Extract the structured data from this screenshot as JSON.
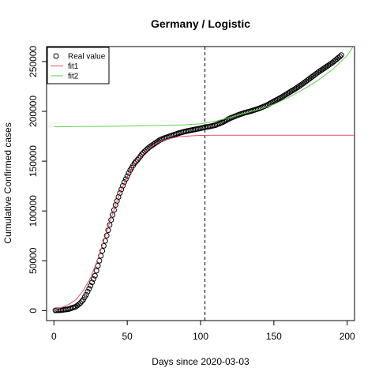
{
  "chart_data": {
    "type": "scatter",
    "title": "Germany / Logistic",
    "xlabel": "Days since 2020-03-03",
    "ylabel": "Cumulative Confirmed cases",
    "xlim": [
      -5,
      205
    ],
    "ylim": [
      -10000,
      265000
    ],
    "x_ticks": [
      0,
      50,
      100,
      150,
      200
    ],
    "x_tick_labels": [
      "0",
      "50",
      "100",
      "150",
      "200"
    ],
    "y_ticks": [
      0,
      50000,
      100000,
      150000,
      200000,
      250000
    ],
    "y_tick_labels": [
      "0",
      "50000",
      "100000",
      "150000",
      "200000",
      "250000"
    ],
    "vline_x": 103,
    "legend": {
      "position": "top-left",
      "entries": [
        {
          "label": "Real value",
          "style": "open-circle",
          "color": "#000000"
        },
        {
          "label": "fit1",
          "style": "line",
          "color": "#DF536B"
        },
        {
          "label": "fit2",
          "style": "line",
          "color": "#61D04F"
        }
      ]
    },
    "series": [
      {
        "name": "Real value",
        "style": "open-circle",
        "color": "#000000",
        "x": [
          1,
          5,
          10,
          15,
          18,
          20,
          22,
          25,
          28,
          30,
          32,
          35,
          38,
          40,
          42,
          45,
          48,
          50,
          52,
          55,
          58,
          60,
          62,
          65,
          68,
          70,
          72,
          75,
          78,
          80,
          85,
          90,
          95,
          100,
          103,
          105,
          110,
          115,
          120,
          125,
          130,
          135,
          140,
          145,
          150,
          155,
          160,
          165,
          170,
          175,
          180,
          185,
          190,
          195,
          196
        ],
        "y": [
          200,
          500,
          1500,
          4000,
          7500,
          11000,
          16000,
          25000,
          35000,
          45000,
          55000,
          70000,
          86000,
          96000,
          106000,
          118000,
          129000,
          135000,
          141000,
          148000,
          153000,
          157000,
          160000,
          164000,
          167000,
          169000,
          171000,
          173000,
          174500,
          175500,
          178000,
          180000,
          181500,
          183000,
          184000,
          184500,
          186000,
          189000,
          193000,
          196000,
          198500,
          200500,
          203000,
          206000,
          210000,
          214000,
          218500,
          223000,
          228000,
          233500,
          239000,
          244000,
          249000,
          255000,
          256500
        ]
      },
      {
        "name": "fit1",
        "style": "line",
        "color": "#DF536B",
        "x": [
          0,
          5,
          10,
          15,
          20,
          25,
          30,
          35,
          40,
          45,
          50,
          55,
          60,
          65,
          70,
          75,
          80,
          85,
          90,
          95,
          100,
          110,
          120,
          130,
          140,
          150,
          160,
          170,
          180,
          190,
          200,
          205
        ],
        "y": [
          1500,
          3000,
          6000,
          11000,
          20000,
          33000,
          52000,
          75000,
          97000,
          118000,
          134000,
          147000,
          156000,
          163000,
          168000,
          171000,
          173000,
          174500,
          175000,
          175500,
          175800,
          176000,
          176000,
          176000,
          176000,
          176000,
          176000,
          176000,
          176000,
          176000,
          176000,
          176000
        ]
      },
      {
        "name": "fit2",
        "style": "line",
        "color": "#61D04F",
        "x": [
          0,
          20,
          40,
          60,
          80,
          90,
          100,
          110,
          120,
          130,
          140,
          150,
          160,
          170,
          180,
          190,
          200,
          205
        ],
        "y": [
          184500,
          184800,
          185000,
          185500,
          186000,
          186500,
          187500,
          190000,
          194000,
          198000,
          202000,
          207000,
          214000,
          222000,
          231000,
          242000,
          256000,
          267000
        ]
      }
    ]
  }
}
